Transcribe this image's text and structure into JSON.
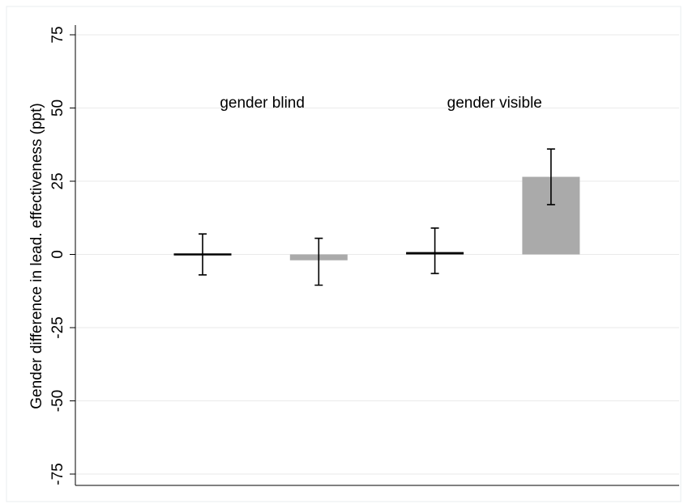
{
  "chart_data": {
    "type": "bar",
    "title": "",
    "xlabel": "",
    "ylabel": "Gender difference in lead. effectiveness (ppt)",
    "ylim": [
      -79,
      80
    ],
    "yticks": [
      75,
      50,
      25,
      0,
      -25,
      -50,
      -75
    ],
    "grid": true,
    "group_labels": [
      {
        "text": "gender blind",
        "x": 1.5
      },
      {
        "text": "gender visible",
        "x": 3.5
      }
    ],
    "bars": [
      {
        "x": 1,
        "value": 0.0,
        "ci_low": -7.0,
        "ci_high": 7.0,
        "color": "#000000"
      },
      {
        "x": 2,
        "value": -2.0,
        "ci_low": -10.5,
        "ci_high": 5.5,
        "color": "#aaaaaa"
      },
      {
        "x": 3,
        "value": 0.8,
        "ci_low": -6.5,
        "ci_high": 9.0,
        "color": "#000000"
      },
      {
        "x": 4,
        "value": 26.5,
        "ci_low": 17.0,
        "ci_high": 36.0,
        "color": "#aaaaaa"
      }
    ]
  }
}
